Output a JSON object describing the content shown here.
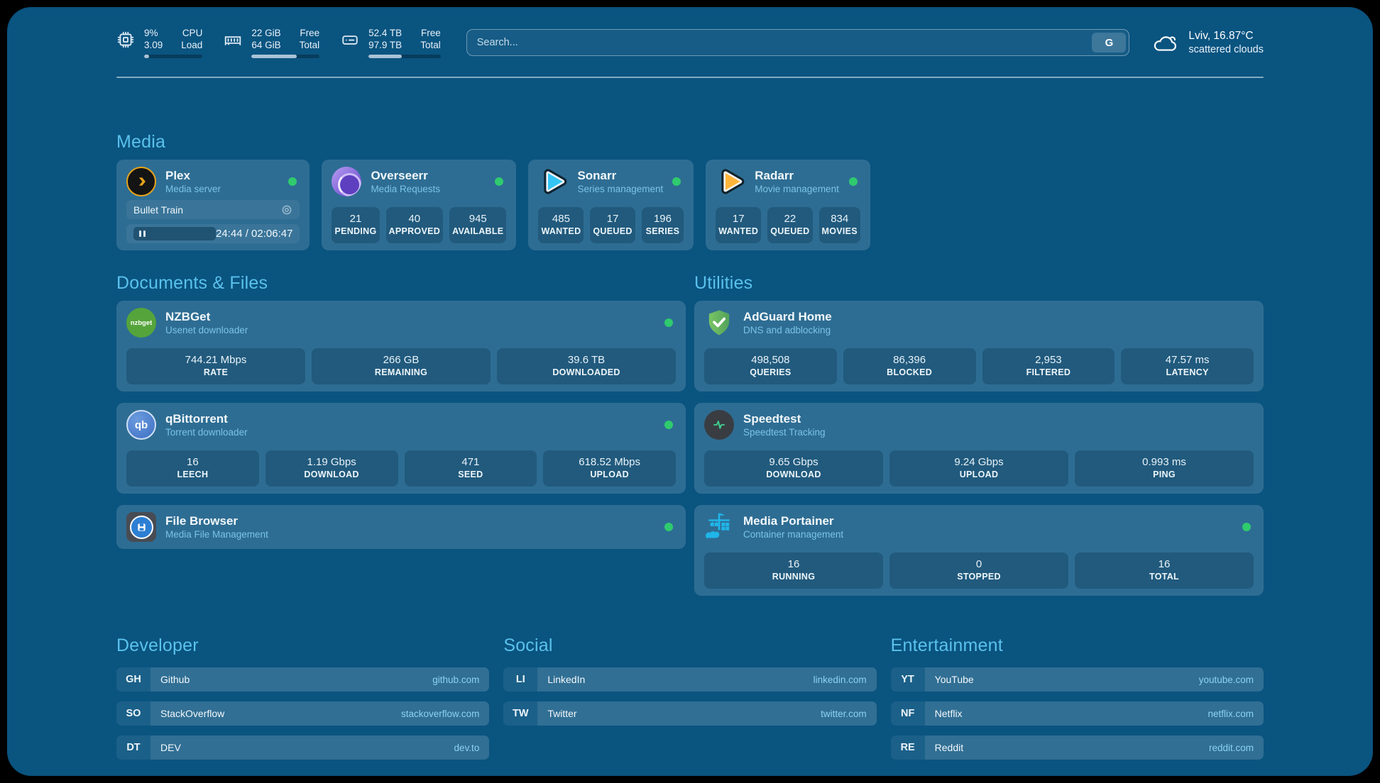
{
  "colors": {
    "background": "#0a5480",
    "heading": "#5ac2ec",
    "subtitle": "#79c4e6",
    "status_online": "#2fcb6e",
    "plex_accent": "#e7a41a",
    "sonarr_accent": "#35c5f4",
    "radarr_accent": "#ffb53a"
  },
  "topbar": {
    "resources": [
      {
        "icon": "cpu-icon",
        "value1": "9%",
        "label1": "CPU",
        "value2": "3.09",
        "label2": "Load",
        "progress": 9
      },
      {
        "icon": "ram-icon",
        "value1": "22 GiB",
        "label1": "Free",
        "value2": "64 GiB",
        "label2": "Total",
        "progress": 66
      },
      {
        "icon": "disk-icon",
        "value1": "52.4 TB",
        "label1": "Free",
        "value2": "97.9 TB",
        "label2": "Total",
        "progress": 46
      }
    ],
    "search": {
      "placeholder": "Search...",
      "button": "G"
    },
    "weather": {
      "icon": "scattered-clouds-icon",
      "location": "Lviv, 16.87°C",
      "condition": "scattered clouds"
    }
  },
  "sections": {
    "media": {
      "title": "Media"
    },
    "documents": {
      "title": "Documents & Files"
    },
    "utilities": {
      "title": "Utilities"
    }
  },
  "services": {
    "plex": {
      "name": "Plex",
      "desc": "Media server",
      "now_playing": "Bullet Train",
      "time": "24:44 / 02:06:47",
      "status": "online"
    },
    "overseerr": {
      "name": "Overseerr",
      "desc": "Media Requests",
      "status": "online",
      "stats": [
        {
          "value": "21",
          "label": "PENDING"
        },
        {
          "value": "40",
          "label": "APPROVED"
        },
        {
          "value": "945",
          "label": "AVAILABLE"
        }
      ]
    },
    "sonarr": {
      "name": "Sonarr",
      "desc": "Series management",
      "status": "online",
      "stats": [
        {
          "value": "485",
          "label": "WANTED"
        },
        {
          "value": "17",
          "label": "QUEUED"
        },
        {
          "value": "196",
          "label": "SERIES"
        }
      ]
    },
    "radarr": {
      "name": "Radarr",
      "desc": "Movie management",
      "status": "online",
      "stats": [
        {
          "value": "17",
          "label": "WANTED"
        },
        {
          "value": "22",
          "label": "QUEUED"
        },
        {
          "value": "834",
          "label": "MOVIES"
        }
      ]
    },
    "nzbget": {
      "name": "NZBGet",
      "desc": "Usenet downloader",
      "status": "online",
      "stats": [
        {
          "value": "744.21 Mbps",
          "label": "RATE"
        },
        {
          "value": "266 GB",
          "label": "REMAINING"
        },
        {
          "value": "39.6 TB",
          "label": "DOWNLOADED"
        }
      ]
    },
    "qbittorrent": {
      "name": "qBittorrent",
      "desc": "Torrent downloader",
      "status": "online",
      "stats": [
        {
          "value": "16",
          "label": "LEECH"
        },
        {
          "value": "1.19 Gbps",
          "label": "DOWNLOAD"
        },
        {
          "value": "471",
          "label": "SEED"
        },
        {
          "value": "618.52 Mbps",
          "label": "UPLOAD"
        }
      ]
    },
    "filebrowser": {
      "name": "File Browser",
      "desc": "Media File Management",
      "status": "online"
    },
    "adguard": {
      "name": "AdGuard Home",
      "desc": "DNS and adblocking",
      "stats": [
        {
          "value": "498,508",
          "label": "QUERIES"
        },
        {
          "value": "86,396",
          "label": "BLOCKED"
        },
        {
          "value": "2,953",
          "label": "FILTERED"
        },
        {
          "value": "47.57 ms",
          "label": "LATENCY"
        }
      ]
    },
    "speedtest": {
      "name": "Speedtest",
      "desc": "Speedtest Tracking",
      "stats": [
        {
          "value": "9.65 Gbps",
          "label": "DOWNLOAD"
        },
        {
          "value": "9.24 Gbps",
          "label": "UPLOAD"
        },
        {
          "value": "0.993 ms",
          "label": "PING"
        }
      ]
    },
    "portainer": {
      "name": "Media Portainer",
      "desc": "Container management",
      "status": "online",
      "stats": [
        {
          "value": "16",
          "label": "RUNNING"
        },
        {
          "value": "0",
          "label": "STOPPED"
        },
        {
          "value": "16",
          "label": "TOTAL"
        }
      ]
    }
  },
  "bookmarks": {
    "developer": {
      "title": "Developer",
      "items": [
        {
          "abbr": "GH",
          "name": "Github",
          "url": "github.com"
        },
        {
          "abbr": "SO",
          "name": "StackOverflow",
          "url": "stackoverflow.com"
        },
        {
          "abbr": "DT",
          "name": "DEV",
          "url": "dev.to"
        }
      ]
    },
    "social": {
      "title": "Social",
      "items": [
        {
          "abbr": "LI",
          "name": "LinkedIn",
          "url": "linkedin.com"
        },
        {
          "abbr": "TW",
          "name": "Twitter",
          "url": "twitter.com"
        }
      ]
    },
    "entertainment": {
      "title": "Entertainment",
      "items": [
        {
          "abbr": "YT",
          "name": "YouTube",
          "url": "youtube.com"
        },
        {
          "abbr": "NF",
          "name": "Netflix",
          "url": "netflix.com"
        },
        {
          "abbr": "RE",
          "name": "Reddit",
          "url": "reddit.com"
        }
      ]
    }
  }
}
